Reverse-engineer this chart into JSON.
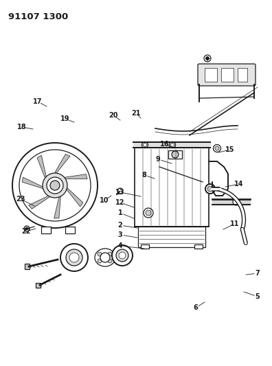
{
  "title": "91107 1300",
  "bg": "#ffffff",
  "lc": "#1a1a1a",
  "fig_w": 3.96,
  "fig_h": 5.33,
  "dpi": 100,
  "parts": [
    [
      "1",
      175,
      310,
      195,
      318
    ],
    [
      "2",
      175,
      328,
      200,
      332
    ],
    [
      "3",
      175,
      342,
      200,
      346
    ],
    [
      "4",
      175,
      358,
      210,
      362
    ],
    [
      "5",
      375,
      432,
      355,
      425
    ],
    [
      "6",
      285,
      448,
      298,
      440
    ],
    [
      "7",
      375,
      398,
      358,
      400
    ],
    [
      "8",
      210,
      255,
      225,
      260
    ],
    [
      "9",
      230,
      232,
      250,
      238
    ],
    [
      "10",
      152,
      292,
      162,
      285
    ],
    [
      "11",
      342,
      326,
      325,
      334
    ],
    [
      "12",
      175,
      295,
      195,
      302
    ],
    [
      "13",
      175,
      280,
      205,
      286
    ],
    [
      "14",
      348,
      268,
      328,
      272
    ],
    [
      "15",
      335,
      218,
      318,
      222
    ],
    [
      "16",
      240,
      210,
      254,
      216
    ],
    [
      "17",
      55,
      148,
      68,
      155
    ],
    [
      "18",
      32,
      185,
      48,
      188
    ],
    [
      "19",
      95,
      173,
      108,
      178
    ],
    [
      "20",
      165,
      168,
      175,
      175
    ],
    [
      "21",
      198,
      165,
      205,
      172
    ],
    [
      "22",
      38,
      337,
      52,
      333
    ],
    [
      "23",
      30,
      290,
      50,
      300
    ]
  ]
}
